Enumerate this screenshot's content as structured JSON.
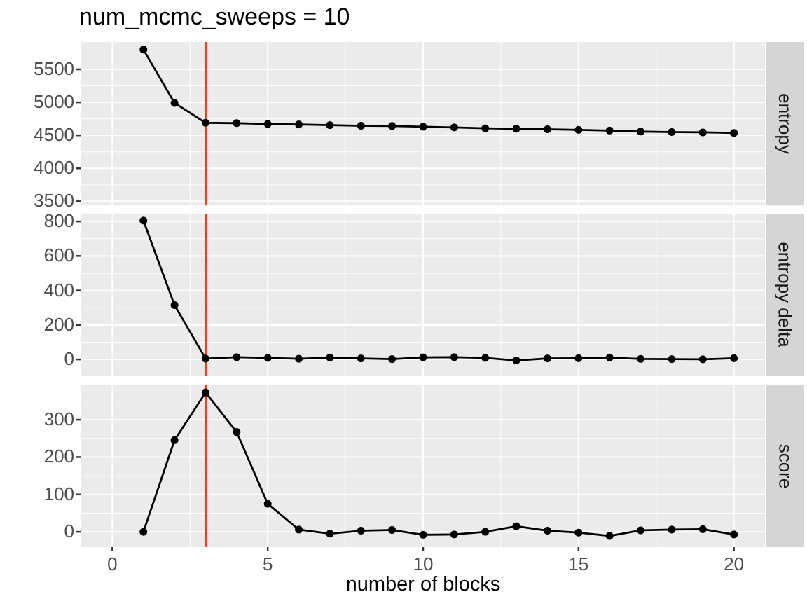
{
  "title": "num_mcmc_sweeps = 10",
  "x_axis_title": "number of blocks",
  "chart_data": {
    "type": "line",
    "title": "num_mcmc_sweeps = 10",
    "xlabel": "number of blocks",
    "legend": "none",
    "grid": true,
    "facet_strip_position": "right",
    "x": [
      1,
      2,
      3,
      4,
      5,
      6,
      7,
      8,
      9,
      10,
      11,
      12,
      13,
      14,
      15,
      16,
      17,
      18,
      19,
      20
    ],
    "x_ticks": [
      0,
      5,
      10,
      15,
      20
    ],
    "xlim": [
      -1,
      21
    ],
    "vline_x": 3,
    "facets": [
      {
        "label": "entropy",
        "y_ticks": [
          3500,
          4000,
          4500,
          5000,
          5500
        ],
        "ylim": [
          3437,
          5914
        ],
        "values": [
          5800,
          4990,
          4690,
          4685,
          4672,
          4665,
          4655,
          4645,
          4642,
          4630,
          4620,
          4607,
          4600,
          4592,
          4583,
          4572,
          4557,
          4550,
          4545,
          4537
        ]
      },
      {
        "label": "entropy delta",
        "y_ticks": [
          0,
          200,
          400,
          600,
          800
        ],
        "ylim": [
          -93,
          845
        ],
        "values": [
          805,
          315,
          5,
          13,
          9,
          4,
          11,
          6,
          2,
          12,
          13,
          9,
          -6,
          6,
          7,
          11,
          3,
          2,
          1,
          7
        ]
      },
      {
        "label": "score",
        "y_ticks": [
          0,
          100,
          200,
          300
        ],
        "ylim": [
          -41,
          392
        ],
        "values": [
          0,
          245,
          373,
          267,
          75,
          6,
          -5,
          3,
          5,
          -8,
          -7,
          0,
          15,
          3,
          -2,
          -11,
          4,
          6,
          7,
          -7
        ]
      }
    ],
    "colors": {
      "line": "#000000",
      "point": "#000000",
      "vline": "#ee3a1a",
      "panel_bg": "#ebebeb",
      "strip_bg": "#d5d5d5",
      "grid": "#ffffff",
      "tick_label": "#4d4d4d",
      "strip_label": "#1a1a1a",
      "axis_tick": "#333333",
      "title": "#000000"
    }
  }
}
